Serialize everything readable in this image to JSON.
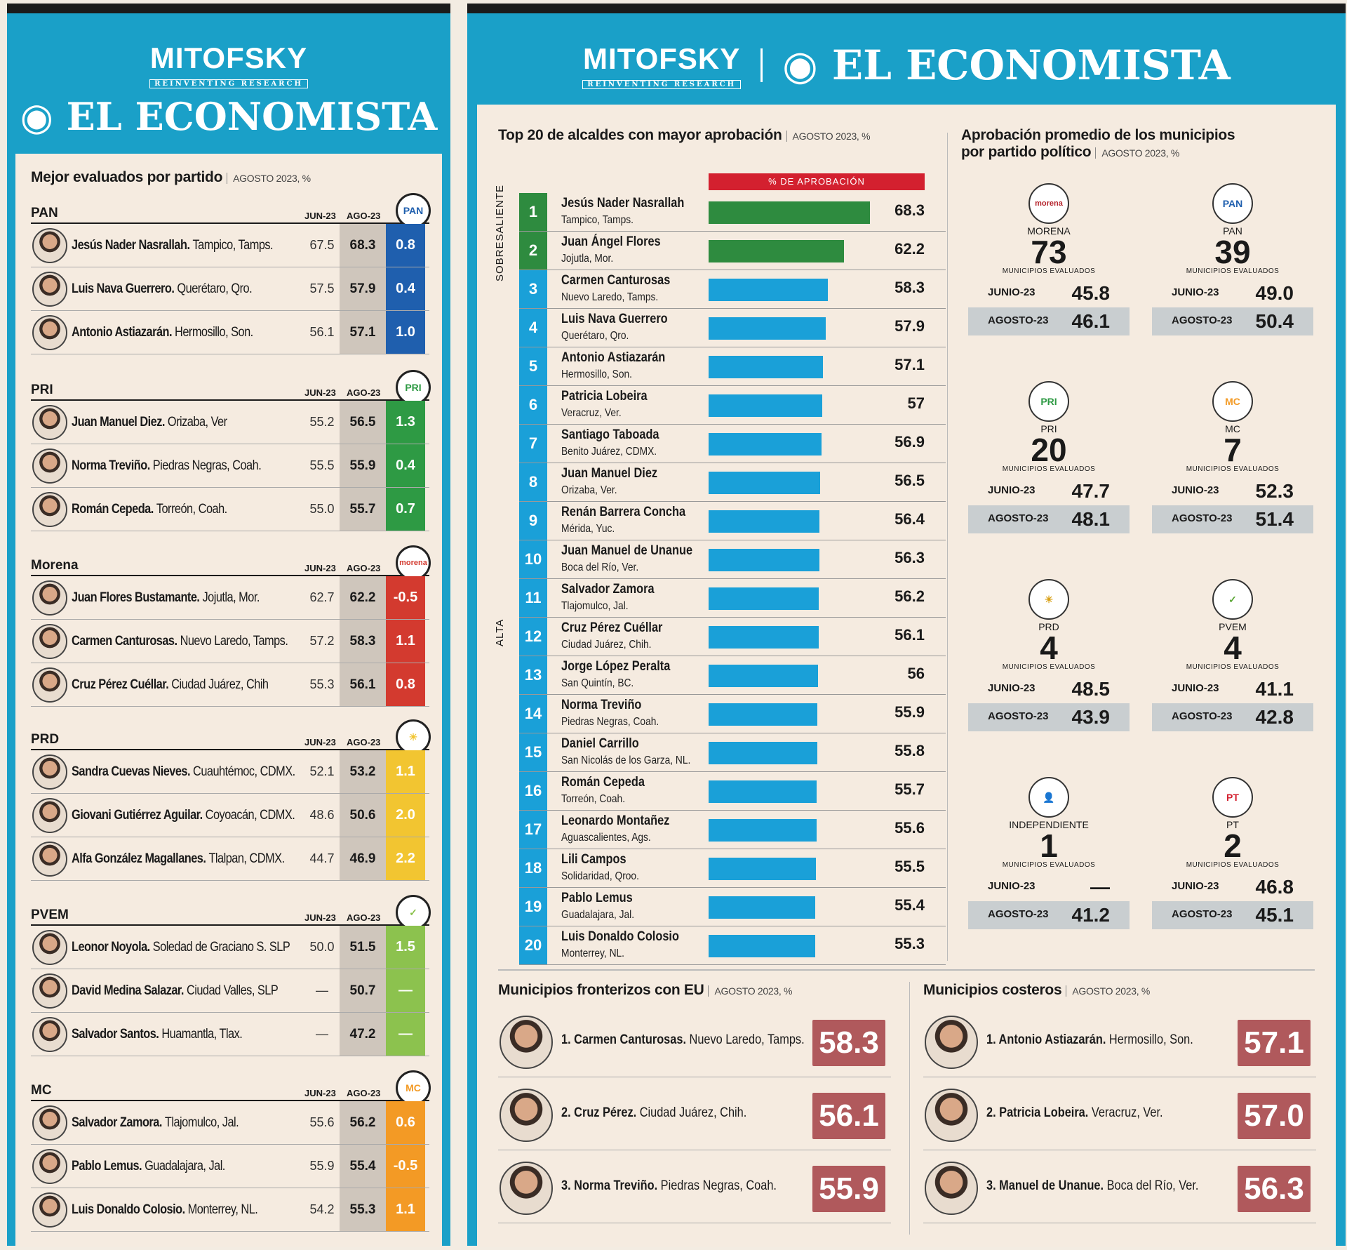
{
  "brand": {
    "mitofsky": "MITOFSKY",
    "mitofsky_sub": "REINVENTING RESEARCH",
    "economista": "EL ECONOMISTA"
  },
  "left": {
    "title": "Mejor evaluados por partido",
    "subtitle": "AGOSTO 2023, %",
    "hdr_jun": "JUN-23",
    "hdr_ago": "AGO-23",
    "parties": [
      {
        "name": "PAN",
        "logo": "PAN",
        "color": "#1f5fae",
        "rows": [
          {
            "name": "Jesús Nader Nasrallah.",
            "place": "Tampico, Tamps.",
            "jun": "67.5",
            "ago": "68.3",
            "diff": "0.8"
          },
          {
            "name": "Luis Nava Guerrero.",
            "place": "Querétaro, Qro.",
            "jun": "57.5",
            "ago": "57.9",
            "diff": "0.4"
          },
          {
            "name": "Antonio Astiazarán.",
            "place": "Hermosillo, Son.",
            "jun": "56.1",
            "ago": "57.1",
            "diff": "1.0"
          }
        ]
      },
      {
        "name": "PRI",
        "logo": "PRI",
        "color": "#2e9a44",
        "rows": [
          {
            "name": "Juan Manuel Diez.",
            "place": "Orizaba, Ver",
            "jun": "55.2",
            "ago": "56.5",
            "diff": "1.3"
          },
          {
            "name": "Norma Treviño.",
            "place": "Piedras Negras, Coah.",
            "jun": "55.5",
            "ago": "55.9",
            "diff": "0.4"
          },
          {
            "name": "Román Cepeda.",
            "place": "Torreón, Coah.",
            "jun": "55.0",
            "ago": "55.7",
            "diff": "0.7"
          }
        ]
      },
      {
        "name": "Morena",
        "logo": "morena",
        "color": "#d33a2f",
        "rows": [
          {
            "name": "Juan Flores Bustamante.",
            "place": "Jojutla, Mor.",
            "jun": "62.7",
            "ago": "62.2",
            "diff": "-0.5"
          },
          {
            "name": "Carmen Canturosas.",
            "place": "Nuevo Laredo, Tamps.",
            "jun": "57.2",
            "ago": "58.3",
            "diff": "1.1"
          },
          {
            "name": "Cruz Pérez Cuéllar.",
            "place": "Ciudad Juárez, Chih",
            "jun": "55.3",
            "ago": "56.1",
            "diff": "0.8"
          }
        ]
      },
      {
        "name": "PRD",
        "logo": "☀",
        "color": "#f2c531",
        "rows": [
          {
            "name": "Sandra Cuevas Nieves.",
            "place": "Cuauhtémoc, CDMX.",
            "jun": "52.1",
            "ago": "53.2",
            "diff": "1.1"
          },
          {
            "name": "Giovani Gutiérrez Aguilar.",
            "place": "Coyoacán, CDMX.",
            "jun": "48.6",
            "ago": "50.6",
            "diff": "2.0"
          },
          {
            "name": "Alfa González Magallanes.",
            "place": "Tlalpan, CDMX.",
            "jun": "44.7",
            "ago": "46.9",
            "diff": "2.2"
          }
        ]
      },
      {
        "name": "PVEM",
        "logo": "✓",
        "color": "#8cc24e",
        "rows": [
          {
            "name": "Leonor Noyola.",
            "place": "Soledad de Graciano S. SLP",
            "jun": "50.0",
            "ago": "51.5",
            "diff": "1.5"
          },
          {
            "name": "David Medina Salazar.",
            "place": "Ciudad Valles, SLP",
            "jun": "—",
            "ago": "50.7",
            "diff": "—"
          },
          {
            "name": "Salvador Santos.",
            "place": "Huamantla, Tlax.",
            "jun": "—",
            "ago": "47.2",
            "diff": "—"
          }
        ]
      },
      {
        "name": "MC",
        "logo": "MC",
        "color": "#f39a25",
        "rows": [
          {
            "name": "Salvador Zamora.",
            "place": "Tlajomulco, Jal.",
            "jun": "55.6",
            "ago": "56.2",
            "diff": "0.6"
          },
          {
            "name": "Pablo Lemus.",
            "place": "Guadalajara, Jal.",
            "jun": "55.9",
            "ago": "55.4",
            "diff": "-0.5"
          },
          {
            "name": "Luis Donaldo Colosio.",
            "place": "Monterrey, NL.",
            "jun": "54.2",
            "ago": "55.3",
            "diff": "1.1"
          }
        ]
      }
    ]
  },
  "top20": {
    "title": "Top 20 de alcaldes con mayor aprobación",
    "subtitle": "AGOSTO 2023, %",
    "bar_header": "% DE APROBACIÓN",
    "label_sobresaliente": "SOBRESALIENTE",
    "label_alta": "ALTA",
    "color_sobresaliente": "#2e8b3f",
    "color_alta": "#1aa0d8"
  },
  "avg": {
    "title_line1": "Aprobación promedio de los municipios",
    "title_line2": "por partido político",
    "subtitle": "AGOSTO 2023, %",
    "mun_label": "MUNICIPIOS EVALUADOS",
    "jun_label": "JUNIO-23",
    "ago_label": "AGOSTO-23",
    "parties": [
      {
        "name": "MORENA",
        "logo": "morena",
        "count": "73",
        "jun": "45.8",
        "ago": "46.1"
      },
      {
        "name": "PAN",
        "logo": "PAN",
        "count": "39",
        "jun": "49.0",
        "ago": "50.4"
      },
      {
        "name": "PRI",
        "logo": "PRI",
        "count": "20",
        "jun": "47.7",
        "ago": "48.1"
      },
      {
        "name": "MC",
        "logo": "MC",
        "count": "7",
        "jun": "52.3",
        "ago": "51.4"
      },
      {
        "name": "PRD",
        "logo": "☀",
        "count": "4",
        "jun": "48.5",
        "ago": "43.9"
      },
      {
        "name": "PVEM",
        "logo": "✓",
        "count": "4",
        "jun": "41.1",
        "ago": "42.8"
      },
      {
        "name": "INDEPENDIENTE",
        "logo": "👤",
        "count": "1",
        "jun": "—",
        "ago": "41.2"
      },
      {
        "name": "PT",
        "logo": "PT",
        "count": "2",
        "jun": "46.8",
        "ago": "45.1"
      }
    ]
  },
  "frontera": {
    "title": "Municipios fronterizos con EU",
    "subtitle": "AGOSTO 2023, %",
    "rows": [
      {
        "name": "1. Carmen Canturosas.",
        "place": "Nuevo Laredo, Tamps.",
        "value": "58.3"
      },
      {
        "name": "2. Cruz Pérez.",
        "place": "Ciudad Juárez, Chih.",
        "value": "56.1"
      },
      {
        "name": "3. Norma Treviño.",
        "place": "Piedras Negras, Coah.",
        "value": "55.9"
      }
    ]
  },
  "costeros": {
    "title": "Municipios costeros",
    "subtitle": "AGOSTO 2023, %",
    "rows": [
      {
        "name": "1. Antonio Astiazarán.",
        "place": "Hermosillo, Son.",
        "value": "57.1"
      },
      {
        "name": "2. Patricia Lobeira.",
        "place": "Veracruz, Ver.",
        "value": "57.0"
      },
      {
        "name": "3. Manuel de Unanue.",
        "place": "Boca del Río, Ver.",
        "value": "56.3"
      }
    ]
  },
  "chart_data": {
    "type": "bar",
    "title": "Top 20 de alcaldes con mayor aprobación",
    "categories": [
      "Jesús Nader Nasrallah",
      "Juan Ángel Flores",
      "Carmen Canturosas",
      "Luis Nava Guerrero",
      "Antonio Astiazarán",
      "Patricia Lobeira",
      "Santiago Taboada",
      "Juan Manuel Diez",
      "Renán Barrera Concha",
      "Juan Manuel de Unanue",
      "Salvador Zamora",
      "Cruz Pérez Cuéllar",
      "Jorge López Peralta",
      "Norma Treviño",
      "Daniel Carrillo",
      "Román Cepeda",
      "Leonardo Montañez",
      "Lili Campos",
      "Pablo Lemus",
      "Luis Donaldo Colosio"
    ],
    "places": [
      "Tampico, Tamps.",
      "Jojutla, Mor.",
      "Nuevo Laredo, Tamps.",
      "Querétaro, Qro.",
      "Hermosillo, Son.",
      "Veracruz, Ver.",
      "Benito Juárez, CDMX.",
      "Orizaba, Ver.",
      "Mérida, Yuc.",
      "Boca del Río, Ver.",
      "Tlajomulco, Jal.",
      "Ciudad Juárez, Chih.",
      "San Quintín, BC.",
      "Piedras Negras, Coah.",
      "San Nicolás de los Garza, NL.",
      "Torreón, Coah.",
      "Aguascalientes, Ags.",
      "Solidaridad, Qroo.",
      "Guadalajara, Jal.",
      "Monterrey, NL."
    ],
    "values": [
      68.3,
      62.2,
      58.3,
      57.9,
      57.1,
      57.0,
      56.9,
      56.5,
      56.4,
      56.3,
      56.2,
      56.1,
      56.0,
      55.9,
      55.8,
      55.7,
      55.6,
      55.5,
      55.4,
      55.3
    ],
    "ylim": [
      30,
      70
    ]
  }
}
